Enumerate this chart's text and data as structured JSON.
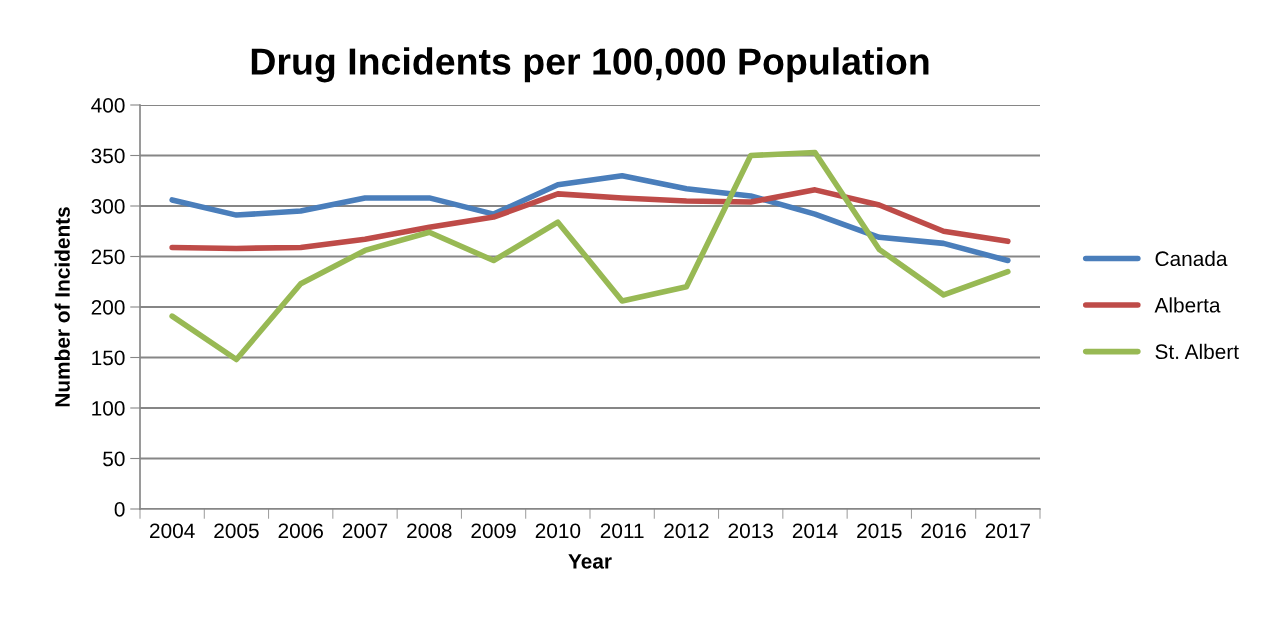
{
  "chart_data": {
    "type": "line",
    "title": "Drug Incidents per 100,000 Population",
    "xlabel": "Year",
    "ylabel": "Number of Incidents",
    "categories": [
      "2004",
      "2005",
      "2006",
      "2007",
      "2008",
      "2009",
      "2010",
      "2011",
      "2012",
      "2013",
      "2014",
      "2015",
      "2016",
      "2017"
    ],
    "series": [
      {
        "name": "Canada",
        "color": "#4a7ebb",
        "values": [
          306,
          291,
          295,
          308,
          308,
          292,
          321,
          330,
          317,
          310,
          292,
          269,
          263,
          246
        ]
      },
      {
        "name": "Alberta",
        "color": "#be4b48",
        "values": [
          259,
          258,
          259,
          267,
          279,
          289,
          312,
          308,
          305,
          304,
          316,
          301,
          275,
          265
        ]
      },
      {
        "name": "St. Albert",
        "color": "#98b954",
        "values": [
          191,
          148,
          223,
          256,
          274,
          246,
          284,
          206,
          220,
          350,
          353,
          257,
          212,
          235
        ]
      }
    ],
    "ylim": [
      0,
      400
    ],
    "yticks": [
      0,
      50,
      100,
      150,
      200,
      250,
      300,
      350,
      400
    ],
    "grid": "y",
    "legend": "right",
    "marker": "none",
    "line_style": "solid"
  }
}
